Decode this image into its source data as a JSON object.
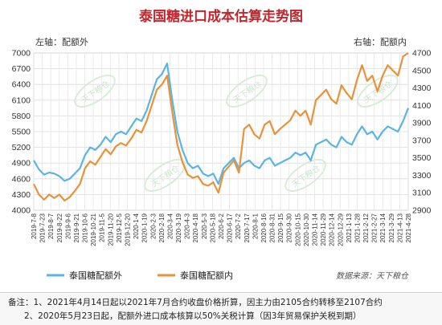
{
  "chart_data": {
    "type": "line",
    "title": "泰国糖进口成本估算走势图",
    "left_axis_label": "左轴：配额外",
    "right_axis_label": "右轴：配额内",
    "left_ylim": [
      4000,
      7000
    ],
    "right_ylim": [
      2900,
      4700
    ],
    "left_yticks": [
      4000,
      4300,
      4600,
      4900,
      5200,
      5500,
      5800,
      6100,
      6400,
      6700,
      7000
    ],
    "right_yticks": [
      2900,
      3100,
      3300,
      3500,
      3700,
      3900,
      4100,
      4300,
      4500,
      4700
    ],
    "x_tick_labels": [
      "2019-7-8",
      "2019-7-23",
      "2019-8-7",
      "2019-8-22",
      "2019-9-6",
      "2019-9-21",
      "2019-10-6",
      "2019-10-21",
      "2019-11-5",
      "2019-11-20",
      "2019-12-5",
      "2019-12-20",
      "2020-1-4",
      "2020-1-19",
      "2020-2-3",
      "2020-2-18",
      "2020-3-4",
      "2020-3-19",
      "2020-4-3",
      "2020-4-18",
      "2020-5-3",
      "2020-5-18",
      "2020-6-2",
      "2020-6-17",
      "2020-7-2",
      "2020-7-17",
      "2020-8-1",
      "2020-8-16",
      "2020-8-31",
      "2020-9-15",
      "2020-9-30",
      "2020-10-15",
      "2020-10-30",
      "2020-11-14",
      "2020-11-29",
      "2020-12-14",
      "2020-12-29",
      "2021-1-13",
      "2021-1-28",
      "2021-2-12",
      "2021-2-27",
      "2021-3-14",
      "2021-3-29",
      "2021-4-13",
      "2021-4-28"
    ],
    "grid": true,
    "legend_position": "bottom-left",
    "series": [
      {
        "name": "泰国糖配额外",
        "axis": "left",
        "color": "#5bb5e0",
        "values": [
          4950,
          4780,
          4680,
          4720,
          4700,
          4650,
          4560,
          4600,
          4700,
          4800,
          5050,
          5200,
          5150,
          5250,
          5400,
          5300,
          5450,
          5500,
          5450,
          5600,
          5750,
          5700,
          5900,
          6200,
          6500,
          6600,
          6800,
          6100,
          5500,
          5150,
          4900,
          4800,
          4850,
          4700,
          4650,
          4700,
          4500,
          4800,
          4900,
          5000,
          4800,
          4900,
          4950,
          4850,
          4800,
          4950,
          5000,
          4850,
          4900,
          4950,
          5000,
          5100,
          5050,
          5100,
          4950,
          5250,
          5300,
          5350,
          5250,
          5200,
          5400,
          5300,
          5250,
          5450,
          5600,
          5450,
          5500,
          5350,
          5500,
          5600,
          5550,
          5500,
          5700,
          5950
        ]
      },
      {
        "name": "泰国糖配额内",
        "axis": "right",
        "color": "#e8923a",
        "values": [
          3200,
          3080,
          3020,
          3080,
          3040,
          3080,
          3010,
          3050,
          3120,
          3200,
          3380,
          3460,
          3420,
          3510,
          3600,
          3540,
          3630,
          3670,
          3640,
          3720,
          3820,
          3790,
          3920,
          4100,
          4280,
          4340,
          4440,
          4020,
          3650,
          3450,
          3310,
          3270,
          3290,
          3200,
          3180,
          3220,
          3100,
          3330,
          3400,
          3470,
          3330,
          3830,
          3880,
          3770,
          3720,
          3880,
          3920,
          3770,
          3830,
          3880,
          3930,
          4040,
          3980,
          4040,
          3880,
          4160,
          4220,
          4280,
          4170,
          4120,
          4330,
          4240,
          4170,
          4390,
          4560,
          4380,
          4440,
          4260,
          4440,
          4560,
          4500,
          4440,
          4660,
          4700
        ]
      }
    ]
  },
  "legend": {
    "series1": "泰国糖配额外",
    "series2": "泰国糖配额内"
  },
  "source": "数据来源：天下粮仓",
  "watermark": "天下粮仓",
  "notes": {
    "line1": "备注：1、2021年4月14日起以2021年7月合约收盘价格折算，因主力由2105合约转移至2107合约",
    "line2": "2、2020年5月23日起，配额外进口成本核算以50%关税计算（因3年贸易保护关税到期）"
  }
}
